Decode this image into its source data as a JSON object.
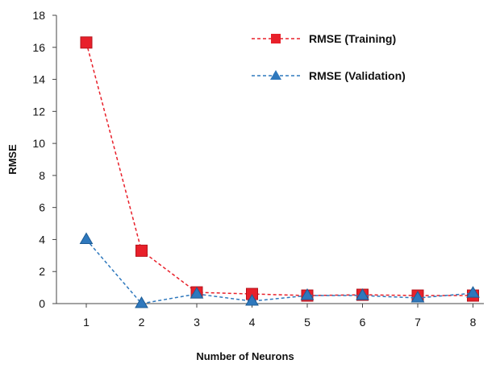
{
  "chart_data": {
    "type": "line",
    "xlabel": "Number  of Neurons",
    "ylabel": "RMSE",
    "categories": [
      "1",
      "2",
      "3",
      "4",
      "5",
      "6",
      "7",
      "8"
    ],
    "ylim": [
      0,
      18
    ],
    "y_ticks": [
      "0",
      "2",
      "4",
      "6",
      "8",
      "10",
      "12",
      "14",
      "16",
      "18"
    ],
    "grid": false,
    "legend_position": "top-right",
    "series": [
      {
        "name": "RMSE (Training)",
        "color": "#e8202a",
        "line_style": "dashed",
        "marker": "square",
        "values": [
          16.3,
          3.3,
          0.7,
          0.6,
          0.5,
          0.55,
          0.5,
          0.5
        ]
      },
      {
        "name": "RMSE (Validation)",
        "color": "#2e78bd",
        "line_style": "dashed",
        "marker": "triangle",
        "values": [
          4.0,
          0.0,
          0.6,
          0.15,
          0.5,
          0.5,
          0.35,
          0.65
        ]
      }
    ]
  }
}
